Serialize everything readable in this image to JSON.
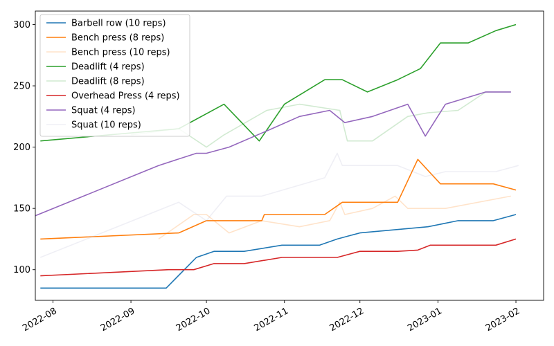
{
  "chart_data": {
    "type": "line",
    "grid": false,
    "legend_position": "top-left",
    "x_axis": {
      "type": "date",
      "min": "2022-07-25",
      "max": "2023-02-12",
      "ticks": [
        "2022-08",
        "2022-09",
        "2022-10",
        "2022-11",
        "2022-12",
        "2023-01",
        "2023-02"
      ]
    },
    "y_axis": {
      "min": 75,
      "max": 311,
      "ticks": [
        100,
        150,
        200,
        250,
        300
      ]
    },
    "series": [
      {
        "name": "Barbell row (10 reps)",
        "color": "#1f77b4",
        "faded": false,
        "points": [
          [
            "2022-07-27",
            85
          ],
          [
            "2022-09-15",
            85
          ],
          [
            "2022-09-27",
            110
          ],
          [
            "2022-10-04",
            115
          ],
          [
            "2022-10-16",
            115
          ],
          [
            "2022-10-31",
            120
          ],
          [
            "2022-11-15",
            120
          ],
          [
            "2022-11-22",
            125
          ],
          [
            "2022-12-01",
            130
          ],
          [
            "2022-12-28",
            135
          ],
          [
            "2023-01-09",
            140
          ],
          [
            "2023-01-23",
            140
          ],
          [
            "2023-02-01",
            145
          ]
        ]
      },
      {
        "name": "Bench press (8 reps)",
        "color": "#ff7f0e",
        "faded": false,
        "points": [
          [
            "2022-07-27",
            125
          ],
          [
            "2022-09-20",
            130
          ],
          [
            "2022-10-01",
            140
          ],
          [
            "2022-10-23",
            140
          ],
          [
            "2022-10-24",
            145
          ],
          [
            "2022-11-17",
            145
          ],
          [
            "2022-11-24",
            155
          ],
          [
            "2022-12-16",
            155
          ],
          [
            "2022-12-24",
            190
          ],
          [
            "2023-01-02",
            170
          ],
          [
            "2023-01-23",
            170
          ],
          [
            "2023-02-01",
            165
          ]
        ]
      },
      {
        "name": "Bench press (10 reps)",
        "color": "#ff7f0e",
        "faded": true,
        "points": [
          [
            "2022-09-12",
            125
          ],
          [
            "2022-09-26",
            145
          ],
          [
            "2022-10-01",
            145
          ],
          [
            "2022-10-10",
            130
          ],
          [
            "2022-10-23",
            140
          ],
          [
            "2022-11-07",
            135
          ],
          [
            "2022-11-19",
            140
          ],
          [
            "2022-11-23",
            155
          ],
          [
            "2022-11-25",
            145
          ],
          [
            "2022-12-06",
            150
          ],
          [
            "2022-12-15",
            160
          ],
          [
            "2022-12-20",
            150
          ],
          [
            "2023-01-04",
            150
          ],
          [
            "2023-01-30",
            160
          ]
        ]
      },
      {
        "name": "Deadlift (4 reps)",
        "color": "#2ca02c",
        "faded": false,
        "points": [
          [
            "2022-07-27",
            205
          ],
          [
            "2022-09-20",
            215
          ],
          [
            "2022-10-08",
            235
          ],
          [
            "2022-10-22",
            205
          ],
          [
            "2022-11-01",
            235
          ],
          [
            "2022-11-17",
            255
          ],
          [
            "2022-11-24",
            255
          ],
          [
            "2022-12-04",
            245
          ],
          [
            "2022-12-16",
            255
          ],
          [
            "2022-12-25",
            264
          ],
          [
            "2023-01-02",
            285
          ],
          [
            "2023-01-13",
            285
          ],
          [
            "2023-01-24",
            295
          ],
          [
            "2023-02-01",
            300
          ]
        ]
      },
      {
        "name": "Deadlift (8 reps)",
        "color": "#2ca02c",
        "faded": true,
        "points": [
          [
            "2022-09-01",
            210
          ],
          [
            "2022-09-20",
            215
          ],
          [
            "2022-10-01",
            200
          ],
          [
            "2022-10-08",
            210
          ],
          [
            "2022-10-25",
            230
          ],
          [
            "2022-11-07",
            235
          ],
          [
            "2022-11-23",
            230
          ],
          [
            "2022-11-26",
            205
          ],
          [
            "2022-12-06",
            205
          ],
          [
            "2022-12-20",
            225
          ],
          [
            "2022-12-28",
            228
          ],
          [
            "2023-01-09",
            230
          ],
          [
            "2023-01-20",
            245
          ],
          [
            "2023-01-30",
            245
          ]
        ]
      },
      {
        "name": "Overhead Press (4 reps)",
        "color": "#d62728",
        "faded": false,
        "points": [
          [
            "2022-07-27",
            95
          ],
          [
            "2022-09-16",
            100
          ],
          [
            "2022-09-26",
            100
          ],
          [
            "2022-10-04",
            105
          ],
          [
            "2022-10-16",
            105
          ],
          [
            "2022-10-31",
            110
          ],
          [
            "2022-11-22",
            110
          ],
          [
            "2022-12-01",
            115
          ],
          [
            "2022-12-16",
            115
          ],
          [
            "2022-12-24",
            116
          ],
          [
            "2022-12-29",
            120
          ],
          [
            "2023-01-24",
            120
          ],
          [
            "2023-02-01",
            125
          ]
        ]
      },
      {
        "name": "Squat (4 reps)",
        "color": "#9467bd",
        "faded": false,
        "points": [
          [
            "2022-07-25",
            144
          ],
          [
            "2022-09-12",
            185
          ],
          [
            "2022-09-27",
            195
          ],
          [
            "2022-10-01",
            195
          ],
          [
            "2022-10-10",
            200
          ],
          [
            "2022-10-27",
            215
          ],
          [
            "2022-11-07",
            225
          ],
          [
            "2022-11-19",
            230
          ],
          [
            "2022-11-25",
            220
          ],
          [
            "2022-12-06",
            225
          ],
          [
            "2022-12-20",
            235
          ],
          [
            "2022-12-27",
            209
          ],
          [
            "2023-01-04",
            235
          ],
          [
            "2023-01-20",
            245
          ],
          [
            "2023-01-30",
            245
          ]
        ]
      },
      {
        "name": "Squat (10 reps)",
        "color": "#b8b8d2",
        "faded": true,
        "points": [
          [
            "2022-07-27",
            110
          ],
          [
            "2022-09-20",
            155
          ],
          [
            "2022-10-01",
            140
          ],
          [
            "2022-10-09",
            160
          ],
          [
            "2022-10-23",
            160
          ],
          [
            "2022-11-17",
            175
          ],
          [
            "2022-11-22",
            195
          ],
          [
            "2022-11-24",
            185
          ],
          [
            "2022-12-16",
            185
          ],
          [
            "2022-12-27",
            176
          ],
          [
            "2023-01-04",
            180
          ],
          [
            "2023-01-24",
            180
          ],
          [
            "2023-02-02",
            185
          ]
        ]
      }
    ]
  }
}
